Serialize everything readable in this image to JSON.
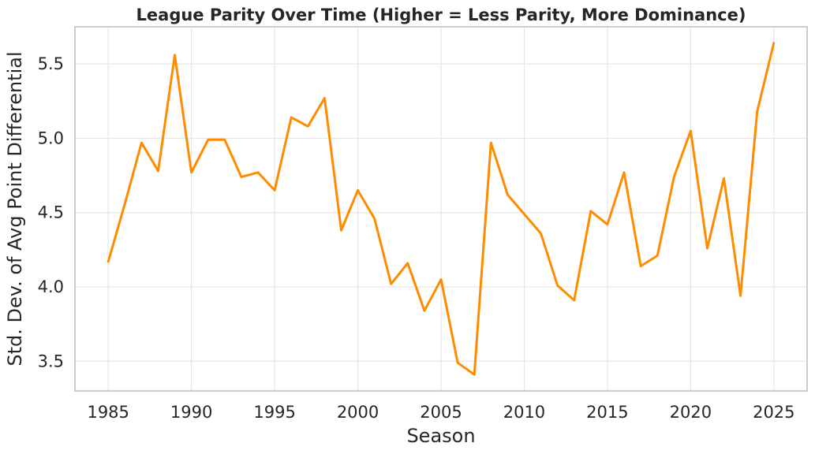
{
  "chart_data": {
    "type": "line",
    "title": "League Parity Over Time (Higher = Less Parity, More Dominance)",
    "xlabel": "Season",
    "ylabel": "Std. Dev. of Avg Point Differential",
    "xlim": [
      1983,
      2027
    ],
    "ylim": [
      3.3,
      5.75
    ],
    "xticks": [
      1985,
      1990,
      1995,
      2000,
      2005,
      2010,
      2015,
      2020,
      2025
    ],
    "xtick_labels": [
      "1985",
      "1990",
      "1995",
      "2000",
      "2005",
      "2010",
      "2015",
      "2020",
      "2025"
    ],
    "yticks": [
      3.5,
      4.0,
      4.5,
      5.0,
      5.5
    ],
    "ytick_labels": [
      "3.5",
      "4.0",
      "4.5",
      "5.0",
      "5.5"
    ],
    "grid": true,
    "color": "#ff8c00",
    "series": [
      {
        "x": [
          1985,
          1986,
          1987,
          1988,
          1989,
          1990,
          1991,
          1992,
          1993,
          1994,
          1995,
          1996,
          1997,
          1998,
          1999,
          2000,
          2001,
          2002,
          2003,
          2004,
          2005,
          2006,
          2007,
          2008,
          2009,
          2011,
          2012,
          2013,
          2014,
          2015,
          2016,
          2017,
          2018,
          2019,
          2020,
          2021,
          2022,
          2023,
          2024,
          2025
        ],
        "values": [
          4.17,
          4.56,
          4.97,
          4.78,
          5.56,
          4.77,
          4.99,
          4.99,
          4.74,
          4.77,
          4.65,
          5.14,
          5.08,
          5.27,
          4.38,
          4.65,
          4.46,
          4.02,
          4.16,
          3.84,
          4.05,
          3.49,
          3.41,
          4.97,
          4.62,
          4.36,
          4.01,
          3.91,
          4.51,
          4.42,
          4.77,
          4.14,
          4.21,
          4.74,
          5.05,
          4.26,
          4.73,
          3.94,
          5.18,
          5.64
        ]
      }
    ]
  }
}
